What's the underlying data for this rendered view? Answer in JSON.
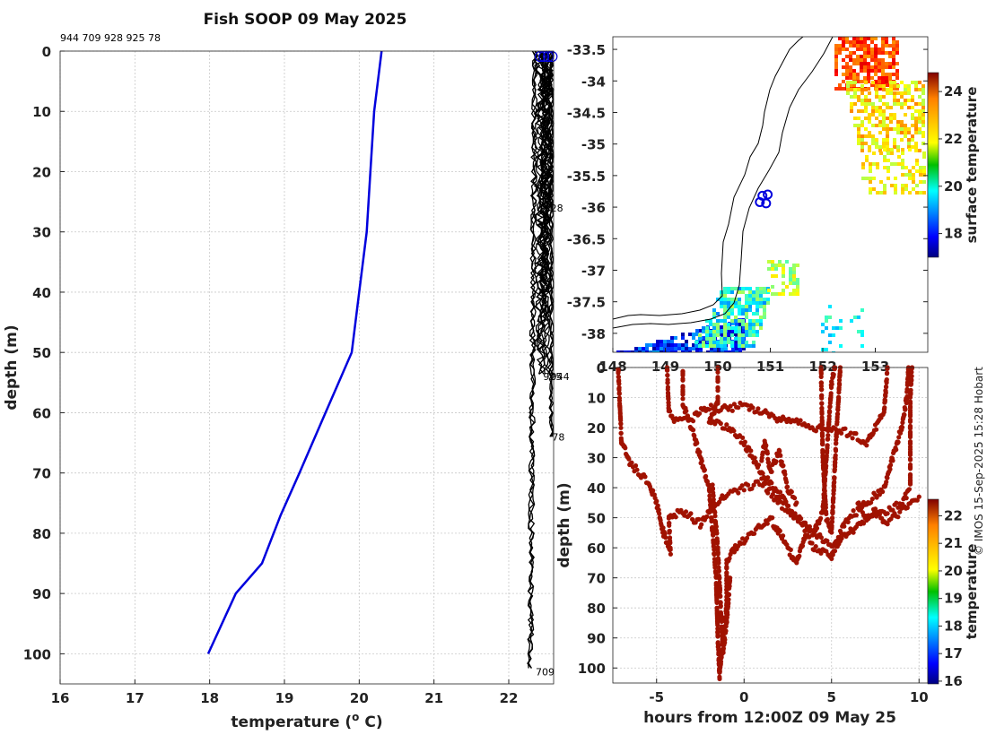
{
  "title": "Fish SOOP 09 May 2025",
  "credit": "© IMOS 15-Sep-2025 15:28 Hobart",
  "profile_ids": "944 709 928 925 78",
  "chart_data": [
    {
      "id": "profile",
      "type": "line",
      "xlabel": "temperature (",
      "xlabel_sup": "o",
      "xlabel_end": " C)",
      "ylabel": "depth (m)",
      "xlim": [
        16,
        22.6
      ],
      "ylim": [
        0,
        105
      ],
      "y_reversed": true,
      "xticks": [
        16,
        17,
        18,
        19,
        20,
        21,
        22
      ],
      "yticks": [
        0,
        10,
        20,
        30,
        40,
        50,
        60,
        70,
        80,
        90,
        100
      ],
      "grid": true,
      "reference_profile": {
        "color": "#0000dd",
        "points": [
          [
            20.3,
            0
          ],
          [
            20.2,
            10
          ],
          [
            20.15,
            20
          ],
          [
            20.1,
            30
          ],
          [
            20.0,
            40
          ],
          [
            19.9,
            50
          ],
          [
            19.55,
            60
          ],
          [
            19.2,
            70
          ],
          [
            18.95,
            77
          ],
          [
            18.7,
            85
          ],
          [
            18.35,
            90
          ],
          [
            17.98,
            100
          ]
        ]
      },
      "sensor_profiles": {
        "color": "#000000",
        "labels": [
          {
            "text": "28",
            "x": 22.5,
            "y": 26
          },
          {
            "text": "925",
            "x": 22.4,
            "y": 54
          },
          {
            "text": "944",
            "x": 22.5,
            "y": 54
          },
          {
            "text": "78",
            "x": 22.52,
            "y": 64
          },
          {
            "text": "709",
            "x": 22.3,
            "y": 103
          }
        ]
      }
    },
    {
      "id": "map",
      "type": "heatmap",
      "xlim": [
        148,
        154
      ],
      "ylim": [
        -38.3,
        -33.3
      ],
      "xticks": [
        148,
        149,
        150,
        151,
        152,
        153
      ],
      "yticks": [
        -33.5,
        -34,
        -34.5,
        -35,
        -35.5,
        -36,
        -36.5,
        -37,
        -37.5,
        -38
      ],
      "colorbar": {
        "label": "surface temperature",
        "range": [
          17,
          24.8
        ],
        "ticks": [
          18,
          20,
          22,
          24
        ]
      },
      "deployment_markers": [
        {
          "lon": 150.85,
          "lat": -35.82
        },
        {
          "lon": 150.95,
          "lat": -35.8
        },
        {
          "lon": 150.8,
          "lat": -35.92
        },
        {
          "lon": 150.92,
          "lat": -35.94
        }
      ]
    },
    {
      "id": "timeseries",
      "type": "scatter",
      "xlabel": "hours from 12:00Z 09 May 25",
      "ylabel": "depth (m)",
      "xlim": [
        -7.5,
        10.5
      ],
      "ylim": [
        0,
        105
      ],
      "y_reversed": true,
      "xticks": [
        -5,
        0,
        5,
        10
      ],
      "yticks": [
        0,
        10,
        20,
        30,
        40,
        50,
        60,
        70,
        80,
        90,
        100
      ],
      "colorbar": {
        "label": "temperature",
        "range": [
          15.9,
          22.6
        ],
        "ticks": [
          16,
          17,
          18,
          19,
          20,
          21,
          22
        ]
      },
      "point_color": "#a01200"
    }
  ]
}
